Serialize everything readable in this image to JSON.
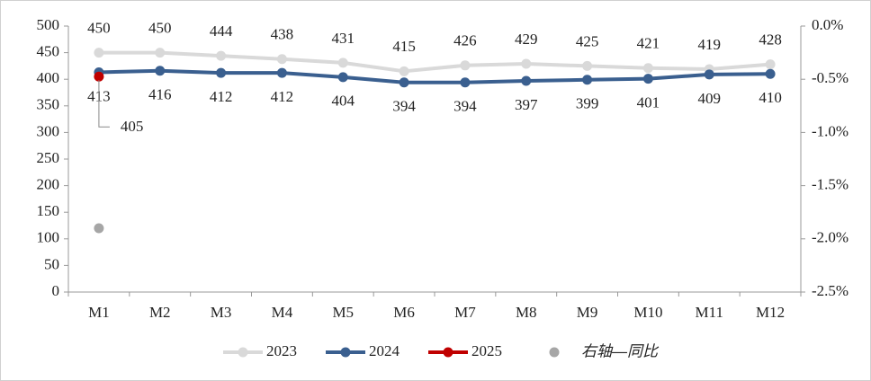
{
  "chart_data": {
    "type": "line",
    "categories": [
      "M1",
      "M2",
      "M3",
      "M4",
      "M5",
      "M6",
      "M7",
      "M8",
      "M9",
      "M10",
      "M11",
      "M12"
    ],
    "series": [
      {
        "name": "2023",
        "color": "#d9d9d9",
        "values": [
          450,
          450,
          444,
          438,
          431,
          415,
          426,
          429,
          425,
          421,
          419,
          428
        ]
      },
      {
        "name": "2024",
        "color": "#3a5f8f",
        "values": [
          413,
          416,
          412,
          412,
          404,
          394,
          394,
          397,
          399,
          401,
          409,
          410
        ]
      },
      {
        "name": "2025",
        "color": "#c00000",
        "values": [
          405,
          null,
          null,
          null,
          null,
          null,
          null,
          null,
          null,
          null,
          null,
          null
        ]
      },
      {
        "name": "右轴—同比",
        "color": "#a6a6a6",
        "type": "scatter",
        "axis": "y2",
        "values": [
          -1.9,
          null,
          null,
          null,
          null,
          null,
          null,
          null,
          null,
          null,
          null,
          null
        ]
      }
    ],
    "ylim": [
      0,
      500
    ],
    "yticks": [
      0,
      50,
      100,
      150,
      200,
      250,
      300,
      350,
      400,
      450,
      500
    ],
    "y2lim": [
      -2.5,
      0
    ],
    "y2ticks": [
      {
        "value": 0,
        "label": "0.0%"
      },
      {
        "value": -0.5,
        "label": "-0.5%"
      },
      {
        "value": -1,
        "label": "-1.0%"
      },
      {
        "value": -1.5,
        "label": "-1.5%"
      },
      {
        "value": -2,
        "label": "-2.0%"
      },
      {
        "value": -2.5,
        "label": "-2.5%"
      }
    ],
    "grid": false,
    "legend": "bottom"
  }
}
